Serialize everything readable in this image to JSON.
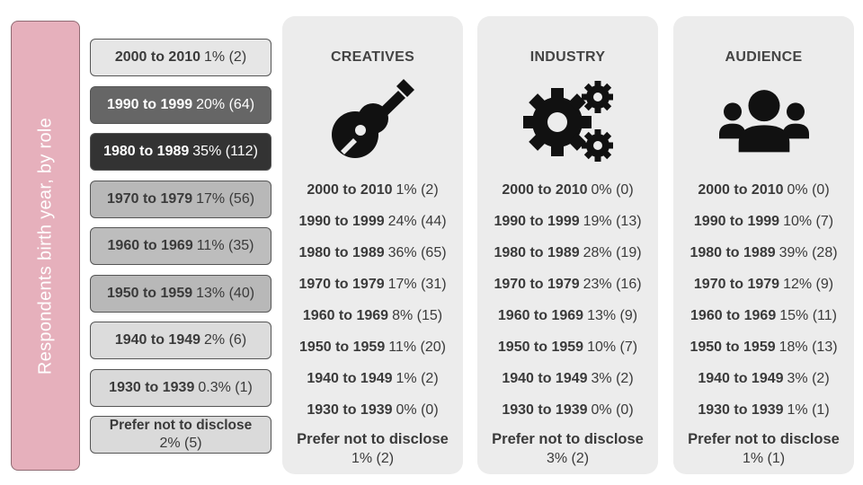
{
  "side_label": "Respondents birth year, by role",
  "overall": [
    {
      "label": "2000 to 2010",
      "value": "1% (2)",
      "bg": "#e6e6e6",
      "fg": "#3a3a3a"
    },
    {
      "label": "1990 to 1999",
      "value": "20% (64)",
      "bg": "#666666",
      "fg": "#ffffff"
    },
    {
      "label": "1980 to 1989",
      "value": "35% (112)",
      "bg": "#333333",
      "fg": "#ffffff"
    },
    {
      "label": "1970 to 1979",
      "value": "17% (56)",
      "bg": "#b8b8b8",
      "fg": "#3a3a3a"
    },
    {
      "label": "1960 to 1969",
      "value": "11% (35)",
      "bg": "#bdbdbd",
      "fg": "#3a3a3a"
    },
    {
      "label": "1950 to 1959",
      "value": "13% (40)",
      "bg": "#b8b8b8",
      "fg": "#3a3a3a"
    },
    {
      "label": "1940 to 1949",
      "value": "2% (6)",
      "bg": "#dcdcdc",
      "fg": "#3a3a3a"
    },
    {
      "label": "1930 to 1939",
      "value": "0.3% (1)",
      "bg": "#d9d9d9",
      "fg": "#3a3a3a"
    },
    {
      "label": "Prefer not to disclose",
      "value": "2% (5)",
      "bg": "#dadada",
      "fg": "#3a3a3a"
    }
  ],
  "roles": [
    {
      "title": "CREATIVES",
      "icon": "guitar-icon",
      "rows": [
        {
          "label": "2000 to 2010",
          "value": "1% (2)"
        },
        {
          "label": "1990 to 1999",
          "value": "24% (44)"
        },
        {
          "label": "1980 to 1989",
          "value": "36% (65)"
        },
        {
          "label": "1970 to 1979",
          "value": "17% (31)"
        },
        {
          "label": "1960 to 1969",
          "value": "8% (15)"
        },
        {
          "label": "1950 to 1959",
          "value": "11% (20)"
        },
        {
          "label": "1940 to 1949",
          "value": "1% (2)"
        },
        {
          "label": "1930 to 1939",
          "value": "0% (0)"
        },
        {
          "label": "Prefer not to disclose",
          "value": "1% (2)"
        }
      ]
    },
    {
      "title": "INDUSTRY",
      "icon": "gears-icon",
      "rows": [
        {
          "label": "2000 to 2010",
          "value": "0% (0)"
        },
        {
          "label": "1990 to 1999",
          "value": "19% (13)"
        },
        {
          "label": "1980 to 1989",
          "value": "28% (19)"
        },
        {
          "label": "1970 to 1979",
          "value": "23% (16)"
        },
        {
          "label": "1960 to 1969",
          "value": "13% (9)"
        },
        {
          "label": "1950 to 1959",
          "value": "10% (7)"
        },
        {
          "label": "1940 to 1949",
          "value": "3% (2)"
        },
        {
          "label": "1930 to 1939",
          "value": "0% (0)"
        },
        {
          "label": "Prefer not to disclose",
          "value": "3% (2)"
        }
      ]
    },
    {
      "title": "AUDIENCE",
      "icon": "users-icon",
      "rows": [
        {
          "label": "2000 to 2010",
          "value": "0% (0)"
        },
        {
          "label": "1990 to 1999",
          "value": "10% (7)"
        },
        {
          "label": "1980 to 1989",
          "value": "39% (28)"
        },
        {
          "label": "1970 to 1979",
          "value": "12% (9)"
        },
        {
          "label": "1960 to 1969",
          "value": "15% (11)"
        },
        {
          "label": "1950 to 1959",
          "value": "18% (13)"
        },
        {
          "label": "1940 to 1949",
          "value": "3% (2)"
        },
        {
          "label": "1930 to 1939",
          "value": "1% (1)"
        },
        {
          "label": "Prefer not to disclose",
          "value": "1% (1)"
        }
      ]
    }
  ]
}
